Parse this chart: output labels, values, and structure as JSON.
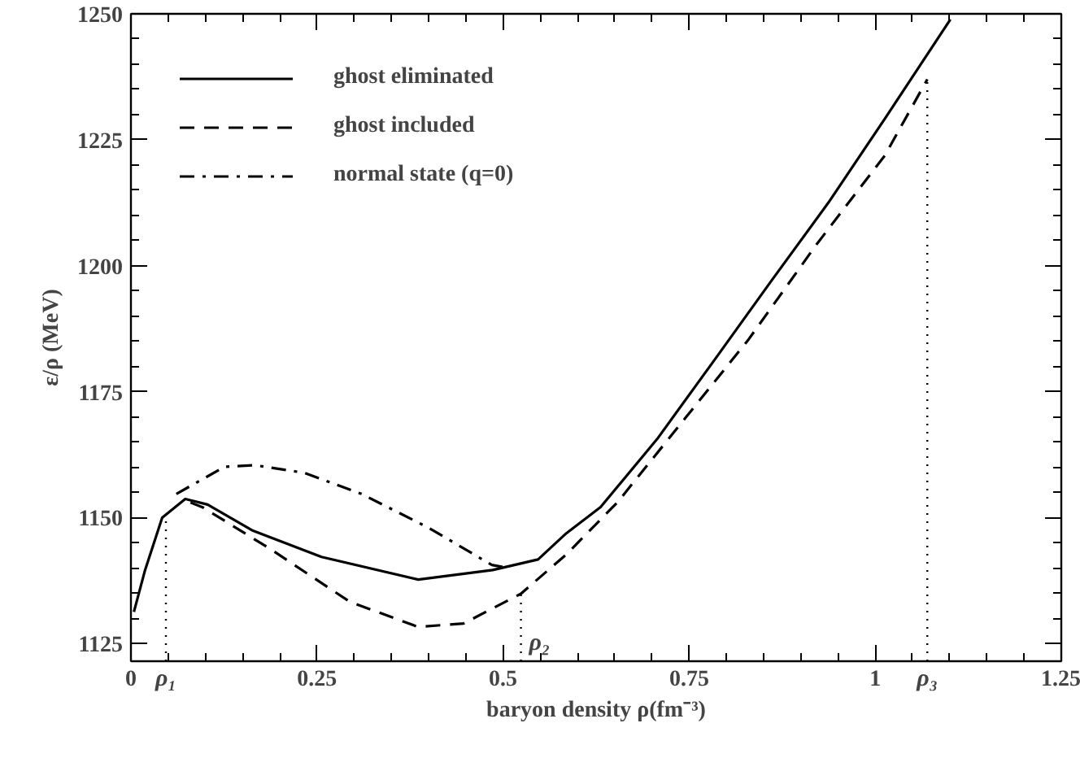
{
  "chart_data": {
    "type": "line",
    "xlabel": "baryon density ρ(fm⁻³)",
    "ylabel": "ε/ρ (MeV)",
    "xlim": [
      0,
      1.25
    ],
    "ylim": [
      1121.5,
      1250
    ],
    "xticks": [
      0,
      0.25,
      0.5,
      0.75,
      1,
      1.25
    ],
    "yticks": [
      1125,
      1150,
      1175,
      1200,
      1225,
      1250
    ],
    "grid": false,
    "legend": "top left",
    "series": [
      {
        "name": "ghost eliminated",
        "color": "#000000",
        "line_style": "solid",
        "x": [
          0.004,
          0.019,
          0.042,
          0.073,
          0.103,
          0.164,
          0.256,
          0.386,
          0.486,
          0.547,
          0.585,
          0.631,
          0.707,
          0.784,
          0.86,
          0.937,
          1.013,
          1.101
        ],
        "values": [
          1131.3,
          1139.6,
          1150,
          1153.7,
          1152.6,
          1147.4,
          1142.2,
          1137.7,
          1139.6,
          1141.7,
          1146.9,
          1152.1,
          1165.6,
          1181.3,
          1196.9,
          1212.5,
          1229.2,
          1248.9
        ]
      },
      {
        "name": "ghost included",
        "color": "#000000",
        "line_style": "dashed",
        "x": [
          0.08,
          0.097,
          0.187,
          0.294,
          0.386,
          0.447,
          0.524,
          0.585,
          0.654,
          0.745,
          0.83,
          0.921,
          1.013,
          1.07
        ],
        "values": [
          1153,
          1152,
          1143.8,
          1133.3,
          1128.3,
          1129,
          1134.9,
          1142.7,
          1153.1,
          1169.8,
          1185.4,
          1204.2,
          1221.9,
          1237
        ]
      },
      {
        "name": "normal state (q=0)",
        "color": "#000000",
        "line_style": "dashdot",
        "x": [
          0.061,
          0.126,
          0.167,
          0.233,
          0.31,
          0.401,
          0.485,
          0.5
        ],
        "values": [
          1154.7,
          1160.1,
          1160.4,
          1158.9,
          1154.7,
          1147.9,
          1140.6,
          1140.2
        ]
      },
      {
        "color": "#000000",
        "line_style": "dotted",
        "x": [
          0.047,
          0.047
        ],
        "values": [
          1121.5,
          1150
        ]
      },
      {
        "color": "#000000",
        "line_style": "dotted",
        "x": [
          0.524,
          0.524
        ],
        "values": [
          1121.5,
          1134.9
        ]
      },
      {
        "color": "#000000",
        "line_style": "dotted",
        "x": [
          1.07,
          1.07
        ],
        "values": [
          1121.5,
          1237
        ]
      }
    ],
    "annotations": [
      {
        "text": "ρ₁",
        "x": 0.047,
        "y": 1121.5
      },
      {
        "text": "ρ₂",
        "x": 0.524,
        "y": 1125
      },
      {
        "text": "ρ₃",
        "x": 1.07,
        "y": 1121.5
      }
    ]
  }
}
